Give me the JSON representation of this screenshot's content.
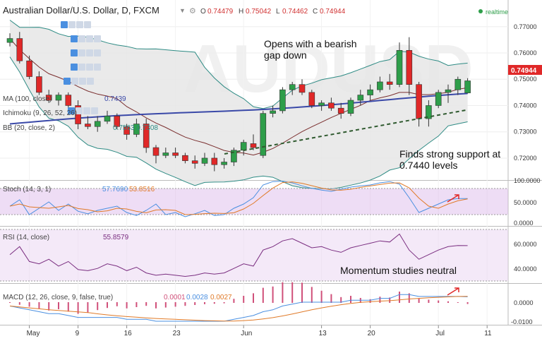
{
  "header": {
    "symbol": "Australian Dollar/U.S. Dollar, D, FXCM",
    "open_label": "O",
    "open": "0.74479",
    "high_label": "H",
    "high": "0.75042",
    "low_label": "L",
    "low": "0.74462",
    "close_label": "C",
    "close": "0.74944",
    "realtime": "realtime",
    "watermark": "AUDUSD"
  },
  "overlays": [
    {
      "label": "MA (100, close)",
      "value": "0.7439",
      "value_color": "#3a49a8"
    },
    {
      "label": "Ichimoku (9, 26, 52, 26)",
      "value": "",
      "value_color": "#333333"
    },
    {
      "label": "BB (20, close, 2)",
      "value": "0.7563 0.7308",
      "value_color": "#2e8b84"
    }
  ],
  "price_axis": {
    "ticks": [
      "0.77000",
      "0.76000",
      "0.75000",
      "0.74000",
      "0.73000",
      "0.72000"
    ],
    "last_price": "0.74944"
  },
  "annotations": {
    "gap": [
      "Opens with a bearish",
      "gap down"
    ],
    "support": [
      "Finds strong support at",
      "0.7440 levels"
    ],
    "momentum": "Momentum studies neutral"
  },
  "stoch": {
    "label": "Stoch (14, 3, 1)",
    "k": "57.7690",
    "d": "53.8516",
    "ticks": [
      "100.0000",
      "50.0000",
      "0.0000"
    ]
  },
  "rsi": {
    "label": "RSI (14, close)",
    "value": "55.8579",
    "ticks": [
      "60.0000",
      "40.0000"
    ]
  },
  "macd": {
    "label": "MACD (12, 26, close, 9, false, true)",
    "hist": "0.0001",
    "macd": "0.0028",
    "signal": "0.0027",
    "ticks": [
      "0.0000",
      "-0.0100"
    ]
  },
  "time_axis": [
    "May",
    "9",
    "16",
    "23",
    "Jun",
    "13",
    "20",
    "Jul",
    "11"
  ],
  "colors": {
    "up": "#2e9e4a",
    "down": "#e02828",
    "ma100": "#3a49a8",
    "ma_brown": "#7a2e2e",
    "bb": "#2e8b84",
    "stoch_k": "#4a8fe0",
    "stoch_d": "#e07a28",
    "rsi": "#7a2e80",
    "macd_hist": "#d0507a"
  },
  "chart_data": {
    "type": "candlestick",
    "x": [
      "Apr 28",
      "Apr 29",
      "May 2",
      "May 3",
      "May 4",
      "May 5",
      "May 6",
      "May 9",
      "May 10",
      "May 11",
      "May 12",
      "May 13",
      "May 16",
      "May 17",
      "May 18",
      "May 19",
      "May 20",
      "May 23",
      "May 24",
      "May 25",
      "May 26",
      "May 27",
      "May 30",
      "May 31",
      "Jun 1",
      "Jun 2",
      "Jun 3",
      "Jun 6",
      "Jun 7",
      "Jun 8",
      "Jun 9",
      "Jun 10",
      "Jun 13",
      "Jun 14",
      "Jun 15",
      "Jun 16",
      "Jun 17",
      "Jun 20",
      "Jun 21",
      "Jun 22",
      "Jun 23",
      "Jun 24",
      "Jun 27",
      "Jun 28",
      "Jun 29",
      "Jun 30",
      "Jul 1",
      "Jul 4"
    ],
    "candles": [
      [
        0.764,
        0.7675,
        0.7625,
        0.7655
      ],
      [
        0.7655,
        0.768,
        0.756,
        0.757
      ],
      [
        0.757,
        0.759,
        0.75,
        0.751
      ],
      [
        0.751,
        0.753,
        0.744,
        0.745
      ],
      [
        0.744,
        0.746,
        0.741,
        0.742
      ],
      [
        0.742,
        0.745,
        0.74,
        0.744
      ],
      [
        0.744,
        0.745,
        0.739,
        0.74
      ],
      [
        0.74,
        0.742,
        0.731,
        0.733
      ],
      [
        0.733,
        0.736,
        0.731,
        0.732
      ],
      [
        0.732,
        0.736,
        0.73,
        0.734
      ],
      [
        0.734,
        0.738,
        0.733,
        0.736
      ],
      [
        0.736,
        0.737,
        0.731,
        0.732
      ],
      [
        0.732,
        0.733,
        0.727,
        0.729
      ],
      [
        0.729,
        0.735,
        0.728,
        0.733
      ],
      [
        0.733,
        0.735,
        0.722,
        0.724
      ],
      [
        0.724,
        0.725,
        0.718,
        0.721
      ],
      [
        0.721,
        0.724,
        0.72,
        0.722
      ],
      [
        0.722,
        0.724,
        0.72,
        0.721
      ],
      [
        0.721,
        0.722,
        0.718,
        0.719
      ],
      [
        0.719,
        0.721,
        0.716,
        0.718
      ],
      [
        0.718,
        0.722,
        0.717,
        0.72
      ],
      [
        0.72,
        0.722,
        0.715,
        0.7175
      ],
      [
        0.7175,
        0.72,
        0.716,
        0.7185
      ],
      [
        0.7185,
        0.724,
        0.717,
        0.723
      ],
      [
        0.723,
        0.727,
        0.721,
        0.726
      ],
      [
        0.7255,
        0.729,
        0.723,
        0.724
      ],
      [
        0.721,
        0.738,
        0.72,
        0.737
      ],
      [
        0.737,
        0.74,
        0.7355,
        0.738
      ],
      [
        0.738,
        0.747,
        0.737,
        0.746
      ],
      [
        0.746,
        0.749,
        0.744,
        0.748
      ],
      [
        0.748,
        0.75,
        0.744,
        0.745
      ],
      [
        0.745,
        0.746,
        0.739,
        0.74
      ],
      [
        0.74,
        0.742,
        0.738,
        0.741
      ],
      [
        0.741,
        0.743,
        0.738,
        0.739
      ],
      [
        0.739,
        0.741,
        0.735,
        0.737
      ],
      [
        0.737,
        0.743,
        0.736,
        0.742
      ],
      [
        0.742,
        0.746,
        0.74,
        0.744
      ],
      [
        0.744,
        0.748,
        0.742,
        0.746
      ],
      [
        0.746,
        0.751,
        0.745,
        0.749
      ],
      [
        0.749,
        0.752,
        0.746,
        0.748
      ],
      [
        0.748,
        0.764,
        0.747,
        0.761
      ],
      [
        0.761,
        0.766,
        0.744,
        0.748
      ],
      [
        0.748,
        0.749,
        0.732,
        0.735
      ],
      [
        0.735,
        0.742,
        0.732,
        0.74
      ],
      [
        0.74,
        0.746,
        0.739,
        0.745
      ],
      [
        0.745,
        0.748,
        0.741,
        0.746
      ],
      [
        0.746,
        0.751,
        0.744,
        0.75
      ],
      [
        0.7448,
        0.7504,
        0.7446,
        0.7494
      ]
    ],
    "ylim": [
      0.713,
      0.778
    ]
  }
}
